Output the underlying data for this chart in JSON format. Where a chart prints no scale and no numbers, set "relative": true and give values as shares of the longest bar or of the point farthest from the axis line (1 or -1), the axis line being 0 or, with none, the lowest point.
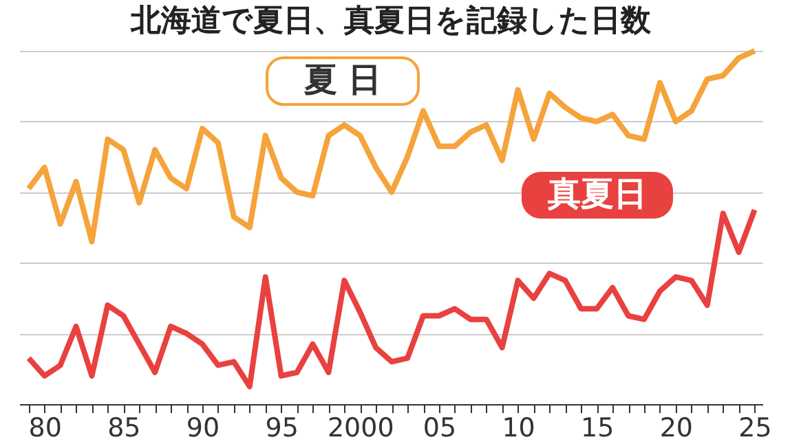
{
  "chart_data": {
    "type": "line",
    "title": "北海道で夏日、真夏日を記録した日数",
    "relative": true,
    "grid": "y",
    "legend": false,
    "marker": "none",
    "line_style": "solid",
    "x": [
      1979,
      1980,
      1981,
      1982,
      1983,
      1984,
      1985,
      1986,
      1987,
      1988,
      1989,
      1990,
      1991,
      1992,
      1993,
      1994,
      1995,
      1996,
      1997,
      1998,
      1999,
      2000,
      2001,
      2002,
      2003,
      2004,
      2005,
      2006,
      2007,
      2008,
      2009,
      2010,
      2011,
      2012,
      2013,
      2014,
      2015,
      2016,
      2017,
      2018,
      2019,
      2020,
      2021,
      2022,
      2023,
      2024,
      2025
    ],
    "xlim": [
      1978.4,
      2025.5
    ],
    "xticks": [
      {
        "value": 1979,
        "label": null
      },
      {
        "value": 1980,
        "label": "80"
      },
      {
        "value": 1981,
        "label": null
      },
      {
        "value": 1982,
        "label": null
      },
      {
        "value": 1983,
        "label": null
      },
      {
        "value": 1984,
        "label": null
      },
      {
        "value": 1985,
        "label": "85"
      },
      {
        "value": 1986,
        "label": null
      },
      {
        "value": 1987,
        "label": null
      },
      {
        "value": 1988,
        "label": null
      },
      {
        "value": 1989,
        "label": null
      },
      {
        "value": 1990,
        "label": "90"
      },
      {
        "value": 1991,
        "label": null
      },
      {
        "value": 1992,
        "label": null
      },
      {
        "value": 1993,
        "label": null
      },
      {
        "value": 1994,
        "label": null
      },
      {
        "value": 1995,
        "label": "95"
      },
      {
        "value": 1996,
        "label": null
      },
      {
        "value": 1997,
        "label": null
      },
      {
        "value": 1998,
        "label": null
      },
      {
        "value": 1999,
        "label": null
      },
      {
        "value": 2000,
        "label": "2000"
      },
      {
        "value": 2001,
        "label": null
      },
      {
        "value": 2002,
        "label": null
      },
      {
        "value": 2003,
        "label": null
      },
      {
        "value": 2004,
        "label": null
      },
      {
        "value": 2005,
        "label": "05"
      },
      {
        "value": 2006,
        "label": null
      },
      {
        "value": 2007,
        "label": null
      },
      {
        "value": 2008,
        "label": null
      },
      {
        "value": 2009,
        "label": null
      },
      {
        "value": 2010,
        "label": "10"
      },
      {
        "value": 2011,
        "label": null
      },
      {
        "value": 2012,
        "label": null
      },
      {
        "value": 2013,
        "label": null
      },
      {
        "value": 2014,
        "label": null
      },
      {
        "value": 2015,
        "label": "15"
      },
      {
        "value": 2016,
        "label": null
      },
      {
        "value": 2017,
        "label": null
      },
      {
        "value": 2018,
        "label": null
      },
      {
        "value": 2019,
        "label": null
      },
      {
        "value": 2020,
        "label": "20"
      },
      {
        "value": 2021,
        "label": null
      },
      {
        "value": 2022,
        "label": null
      },
      {
        "value": 2023,
        "label": null
      },
      {
        "value": 2024,
        "label": null
      },
      {
        "value": 2025,
        "label": "25"
      }
    ],
    "series": [
      {
        "name": "夏 日",
        "color": "#f5a33a",
        "values": [
          0.61,
          0.67,
          0.51,
          0.63,
          0.46,
          0.75,
          0.72,
          0.57,
          0.72,
          0.64,
          0.61,
          0.78,
          0.74,
          0.53,
          0.5,
          0.76,
          0.64,
          0.6,
          0.59,
          0.76,
          0.79,
          0.76,
          0.67,
          0.6,
          0.7,
          0.83,
          0.73,
          0.73,
          0.77,
          0.79,
          0.69,
          0.89,
          0.75,
          0.88,
          0.84,
          0.81,
          0.8,
          0.82,
          0.76,
          0.75,
          0.91,
          0.8,
          0.83,
          0.92,
          0.93,
          0.98,
          1.0
        ]
      },
      {
        "name": "真夏日",
        "color": "#e8413f",
        "values": [
          0.13,
          0.08,
          0.11,
          0.22,
          0.08,
          0.28,
          0.25,
          0.17,
          0.09,
          0.22,
          0.2,
          0.17,
          0.11,
          0.12,
          0.05,
          0.36,
          0.08,
          0.09,
          0.17,
          0.09,
          0.35,
          0.26,
          0.16,
          0.12,
          0.13,
          0.25,
          0.25,
          0.27,
          0.24,
          0.24,
          0.16,
          0.35,
          0.3,
          0.37,
          0.35,
          0.27,
          0.27,
          0.33,
          0.25,
          0.24,
          0.32,
          0.36,
          0.35,
          0.28,
          0.54,
          0.43,
          0.55
        ]
      }
    ]
  }
}
